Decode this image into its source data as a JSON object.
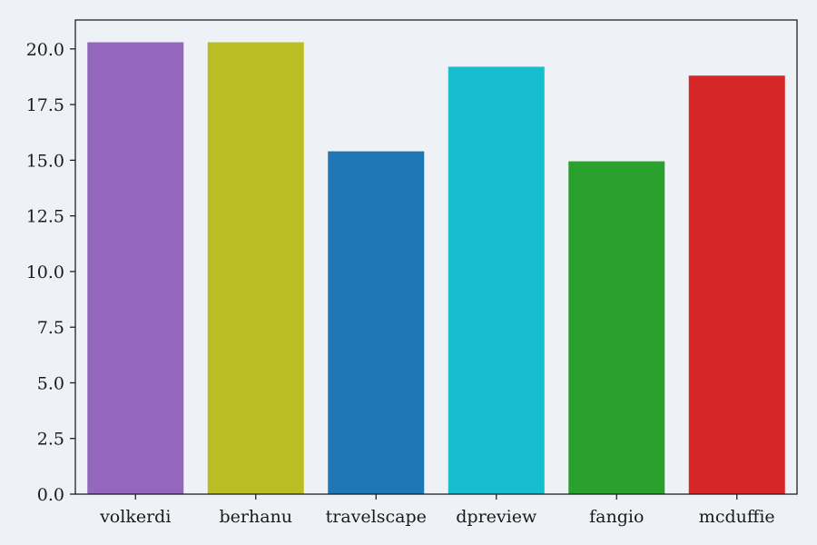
{
  "chart_data": {
    "type": "bar",
    "title": "",
    "xlabel": "",
    "ylabel": "",
    "categories": [
      "volkerdi",
      "berhanu",
      "travelscape",
      "dpreview",
      "fangio",
      "mcduffie"
    ],
    "values": [
      20.3,
      20.3,
      15.4,
      19.2,
      14.95,
      18.8
    ],
    "colors": [
      "#9467bd",
      "#bcbd22",
      "#1f77b4",
      "#17becf",
      "#2ca02c",
      "#d62728"
    ],
    "ylim": [
      0,
      21.3
    ],
    "yticks": [
      0.0,
      2.5,
      5.0,
      7.5,
      10.0,
      12.5,
      15.0,
      17.5,
      20.0
    ],
    "ytick_labels": [
      "0.0",
      "2.5",
      "5.0",
      "7.5",
      "10.0",
      "12.5",
      "15.0",
      "17.5",
      "20.0"
    ],
    "grid": false,
    "legend": "none",
    "background_color": "#eef1f6"
  }
}
